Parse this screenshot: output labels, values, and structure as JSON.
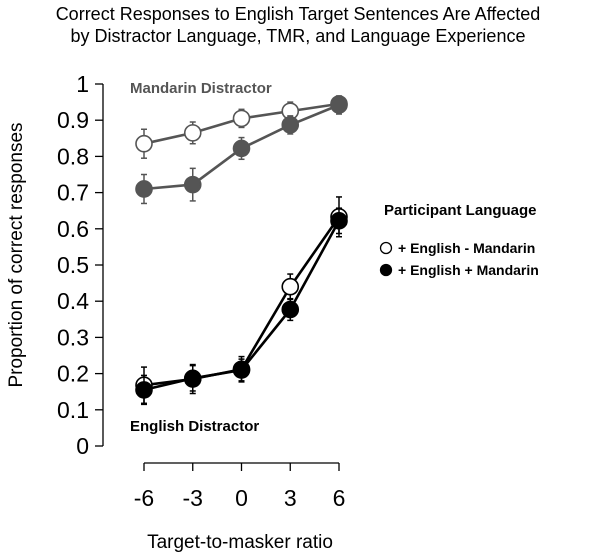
{
  "chart_data": {
    "type": "line",
    "title_line1": "Correct Responses to English Target Sentences Are Affected",
    "title_line2": "by Distractor Language, TMR, and Language Experience",
    "xlabel": "Target-to-masker ratio",
    "ylabel": "Proportion of correct responses",
    "x": [
      -6,
      -3,
      0,
      3,
      6
    ],
    "x_tick_labels": [
      "-6",
      "-3",
      "0",
      "3",
      "6"
    ],
    "ylim": [
      0,
      1
    ],
    "y_ticks": [
      0,
      0.1,
      0.2,
      0.3,
      0.4,
      0.5,
      0.6,
      0.7,
      0.8,
      0.9,
      1
    ],
    "y_tick_labels": [
      "0",
      "0.1",
      "0.2",
      "0.3",
      "0.4",
      "0.5",
      "0.6",
      "0.7",
      "0.8",
      "0.9",
      "1"
    ],
    "grid": false,
    "legend": {
      "title": "Participant Language",
      "placement": "right",
      "entries": [
        {
          "label": "+ English - Mandarin",
          "marker": "open"
        },
        {
          "label": "+ English + Mandarin",
          "marker": "filled"
        }
      ]
    },
    "annotations": {
      "mandarin": "Mandarin Distractor",
      "english": "English Distractor"
    },
    "series": [
      {
        "group": "Mandarin Distractor",
        "participant": "+ English - Mandarin",
        "marker": "open",
        "color": "#555555",
        "values": [
          0.835,
          0.865,
          0.905,
          0.925,
          0.945
        ],
        "err": [
          0.04,
          0.03,
          0.025,
          0.025,
          0.02
        ]
      },
      {
        "group": "Mandarin Distractor",
        "participant": "+ English + Mandarin",
        "marker": "filled",
        "color": "#555555",
        "values": [
          0.71,
          0.722,
          0.822,
          0.887,
          0.942
        ],
        "err": [
          0.04,
          0.045,
          0.03,
          0.025,
          0.025
        ]
      },
      {
        "group": "English Distractor",
        "participant": "+ English - Mandarin",
        "marker": "open",
        "color": "#000000",
        "values": [
          0.168,
          0.185,
          0.212,
          0.44,
          0.633
        ],
        "err": [
          0.05,
          0.04,
          0.035,
          0.035,
          0.055
        ]
      },
      {
        "group": "English Distractor",
        "participant": "+ English + Mandarin",
        "marker": "filled",
        "color": "#000000",
        "values": [
          0.155,
          0.187,
          0.21,
          0.377,
          0.622
        ],
        "err": [
          0.04,
          0.035,
          0.03,
          0.03,
          0.035
        ]
      }
    ],
    "colors": {
      "mandarin": "#555555",
      "english": "#000000"
    }
  }
}
